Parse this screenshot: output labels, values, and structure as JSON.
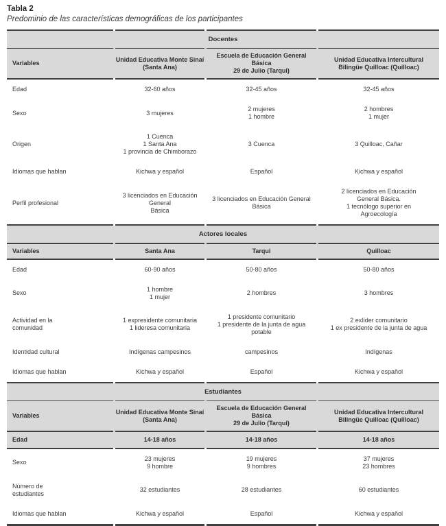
{
  "title": "Tabla 2",
  "subtitle": "Predominio de las características demográficas de los participantes",
  "colors": {
    "header_band_bg": "#d9d9d9",
    "rule": "#3f3f3e",
    "text": "#3a3a39"
  },
  "table": {
    "variables_header": "Variables",
    "sections": [
      {
        "name": "Docentes",
        "columns": [
          "Variables",
          "Unidad Educativa Monte Sinaí\n(Santa Ana)",
          "Escuela de Educación General Básica\n29 de Julio (Tarqui)",
          "Unidad Educativa Intercultural\nBilingüe Quilloac (Quilloac)"
        ],
        "rows": [
          {
            "variable": "Edad",
            "values": [
              "32-60 años",
              "32-45 años",
              "32-45 años"
            ]
          },
          {
            "variable": "Sexo",
            "values": [
              "3 mujeres",
              "2 mujeres\n1 hombre",
              "2 hombres\n1 mujer"
            ]
          },
          {
            "variable": "Origen",
            "values": [
              "1 Cuenca\n1 Santa Ana\n1 provincia de Chimborazo",
              "3 Cuenca",
              "3 Quilloac, Cañar"
            ]
          },
          {
            "variable": "Idiomas que hablan",
            "values": [
              "Kichwa y español",
              "Español",
              "Kichwa y español"
            ]
          },
          {
            "variable": "Perfil profesional",
            "values": [
              "3 licenciados en Educación General\nBásica",
              "3 licenciados en Educación General\nBásica",
              "2 licenciados en Educación\nGeneral Básica.\n1 tecnólogo superior en\nAgroecología"
            ]
          }
        ]
      },
      {
        "name": "Actores locales",
        "columns": [
          "Variables",
          "Santa Ana",
          "Tarqui",
          "Quilloac"
        ],
        "rows": [
          {
            "variable": "Edad",
            "values": [
              "60-90 años",
              "50-80 años",
              "50-80 años"
            ]
          },
          {
            "variable": "Sexo",
            "values": [
              "1 hombre\n1 mujer",
              "2 hombres",
              "3 hombres"
            ]
          },
          {
            "variable": "Actividad en la\ncomunidad",
            "values": [
              "1 expresidente comunitaria\n1 lideresa comunitaria",
              "1 presidente comunitario\n1 presidente de la junta de agua\npotable",
              "2 exlíder comunitario\n1 ex presidente de la junta de agua"
            ]
          },
          {
            "variable": "Identidad cultural",
            "values": [
              "Indígenas campesinos",
              "campesinos",
              "Indígenas"
            ]
          },
          {
            "variable": "Idiomas que hablan",
            "values": [
              "Kichwa y español",
              "Español",
              "Kichwa y español"
            ]
          }
        ]
      },
      {
        "name": "Estudiantes",
        "columns": [
          "Variables",
          "Unidad Educativa Monte Sinaí\n(Santa Ana)",
          "Escuela de Educación General Básica\n29 de Julio (Tarqui)",
          "Unidad Educativa Intercultural\nBilingüe Quilloac (Quilloac)"
        ],
        "rows": [
          {
            "variable": "Edad",
            "values": [
              "14-18 años",
              "14-18 años",
              "14-18 años"
            ],
            "highlight": true
          },
          {
            "variable": "Sexo",
            "values": [
              "23 mujeres\n9 hombre",
              "19 mujeres\n9 hombres",
              "37 mujeres\n23 hombres"
            ]
          },
          {
            "variable": "Número de\nestudiantes",
            "values": [
              "32 estudiantes",
              "28 estudiantes",
              "60 estudiantes"
            ]
          },
          {
            "variable": "Idiomas que hablan",
            "values": [
              "Kichwa y español",
              "Español",
              "Kichwa y español"
            ]
          }
        ]
      }
    ]
  }
}
